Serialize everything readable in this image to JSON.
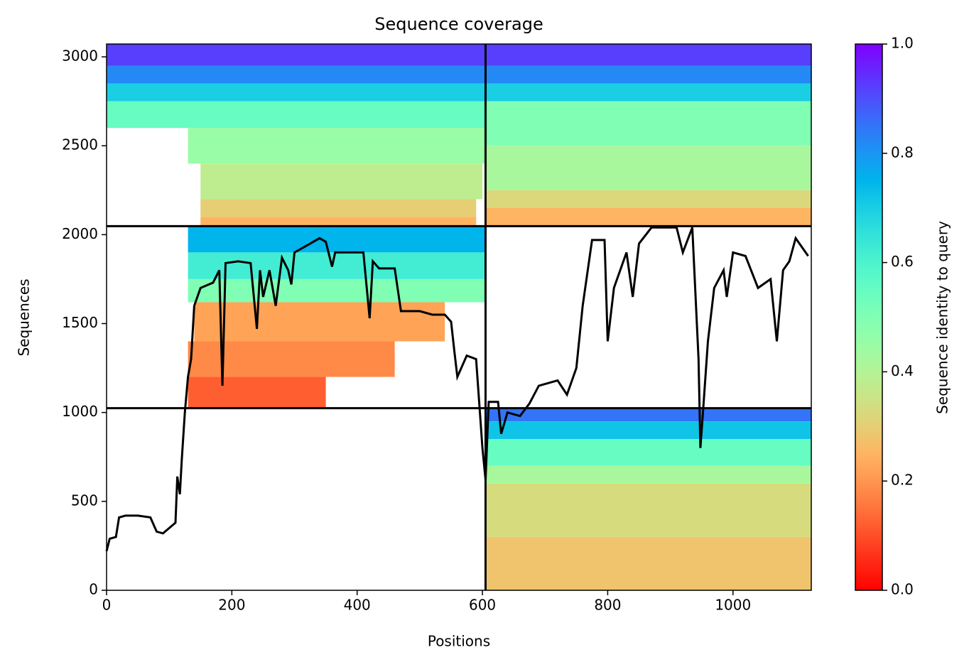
{
  "chart_data": {
    "type": "coverage",
    "title": "Sequence coverage",
    "xlabel": "Positions",
    "ylabel": "Sequences",
    "colorbar_label": "Sequence identity to query",
    "colormap": "rainbow_r",
    "xlim": [
      0,
      1125
    ],
    "ylim": [
      0,
      3072
    ],
    "xticks": [
      0,
      200,
      400,
      600,
      800,
      1000
    ],
    "yticks": [
      0,
      500,
      1000,
      1500,
      2000,
      2500,
      3000
    ],
    "clim": [
      0,
      1
    ],
    "cticks": [
      {
        "value": 0,
        "label": "0.0"
      },
      0.2,
      0.4,
      0.6,
      0.8,
      {
        "value": 1,
        "label": "1.0"
      }
    ],
    "dividers": {
      "x": [
        605
      ],
      "y": [
        1024,
        2048
      ]
    },
    "blocks": [
      {
        "x0": 0,
        "x1": 605,
        "y0": 2950,
        "y1": 3072,
        "identity": 0.92
      },
      {
        "x0": 0,
        "x1": 605,
        "y0": 2850,
        "y1": 2950,
        "identity": 0.82
      },
      {
        "x0": 0,
        "x1": 605,
        "y0": 2750,
        "y1": 2850,
        "identity": 0.7
      },
      {
        "x0": 0,
        "x1": 605,
        "y0": 2600,
        "y1": 2750,
        "identity": 0.55
      },
      {
        "x0": 130,
        "x1": 605,
        "y0": 2400,
        "y1": 2600,
        "identity": 0.45
      },
      {
        "x0": 150,
        "x1": 600,
        "y0": 2200,
        "y1": 2400,
        "identity": 0.38
      },
      {
        "x0": 150,
        "x1": 590,
        "y0": 2100,
        "y1": 2200,
        "identity": 0.3
      },
      {
        "x0": 150,
        "x1": 590,
        "y0": 2048,
        "y1": 2100,
        "identity": 0.25
      },
      {
        "x0": 605,
        "x1": 1125,
        "y0": 2950,
        "y1": 3072,
        "identity": 0.92
      },
      {
        "x0": 605,
        "x1": 1125,
        "y0": 2850,
        "y1": 2950,
        "identity": 0.82
      },
      {
        "x0": 605,
        "x1": 1125,
        "y0": 2750,
        "y1": 2850,
        "identity": 0.7
      },
      {
        "x0": 605,
        "x1": 1125,
        "y0": 2500,
        "y1": 2750,
        "identity": 0.5
      },
      {
        "x0": 605,
        "x1": 1125,
        "y0": 2250,
        "y1": 2500,
        "identity": 0.42
      },
      {
        "x0": 605,
        "x1": 1125,
        "y0": 2150,
        "y1": 2250,
        "identity": 0.32
      },
      {
        "x0": 605,
        "x1": 1125,
        "y0": 2048,
        "y1": 2150,
        "identity": 0.25
      },
      {
        "x0": 130,
        "x1": 605,
        "y0": 1900,
        "y1": 2048,
        "identity": 0.75
      },
      {
        "x0": 130,
        "x1": 605,
        "y0": 1750,
        "y1": 1900,
        "identity": 0.62
      },
      {
        "x0": 130,
        "x1": 605,
        "y0": 1620,
        "y1": 1750,
        "identity": 0.5
      },
      {
        "x0": 140,
        "x1": 540,
        "y0": 1400,
        "y1": 1620,
        "identity": 0.22
      },
      {
        "x0": 130,
        "x1": 460,
        "y0": 1200,
        "y1": 1400,
        "identity": 0.18
      },
      {
        "x0": 130,
        "x1": 350,
        "y0": 1024,
        "y1": 1200,
        "identity": 0.12
      },
      {
        "x0": 605,
        "x1": 1125,
        "y0": 950,
        "y1": 1024,
        "identity": 0.85
      },
      {
        "x0": 605,
        "x1": 1125,
        "y0": 850,
        "y1": 950,
        "identity": 0.72
      },
      {
        "x0": 605,
        "x1": 1125,
        "y0": 700,
        "y1": 850,
        "identity": 0.55
      },
      {
        "x0": 605,
        "x1": 1125,
        "y0": 600,
        "y1": 700,
        "identity": 0.42
      },
      {
        "x0": 605,
        "x1": 1125,
        "y0": 300,
        "y1": 600,
        "identity": 0.33
      },
      {
        "x0": 605,
        "x1": 1125,
        "y0": 0,
        "y1": 300,
        "identity": 0.28
      }
    ],
    "coverage": {
      "color": "#000000",
      "x": [
        0,
        5,
        15,
        20,
        30,
        50,
        70,
        80,
        90,
        100,
        110,
        113,
        117,
        120,
        125,
        130,
        135,
        140,
        150,
        170,
        180,
        185,
        190,
        210,
        230,
        240,
        245,
        250,
        260,
        270,
        280,
        290,
        295,
        300,
        320,
        340,
        350,
        360,
        365,
        410,
        420,
        425,
        435,
        460,
        470,
        500,
        520,
        540,
        550,
        555,
        560,
        575,
        590,
        600,
        605,
        610,
        625,
        630,
        640,
        660,
        675,
        690,
        720,
        735,
        750,
        760,
        775,
        795,
        800,
        810,
        830,
        840,
        850,
        870,
        910,
        920,
        935,
        945,
        948,
        952,
        960,
        970,
        985,
        990,
        1000,
        1020,
        1040,
        1060,
        1070,
        1080,
        1090,
        1100,
        1120
      ],
      "y": [
        220,
        290,
        300,
        410,
        420,
        420,
        410,
        330,
        320,
        350,
        380,
        640,
        540,
        730,
        1000,
        1200,
        1300,
        1600,
        1700,
        1730,
        1800,
        1150,
        1840,
        1850,
        1840,
        1470,
        1800,
        1650,
        1800,
        1600,
        1870,
        1800,
        1720,
        1900,
        1940,
        1980,
        1960,
        1820,
        1900,
        1900,
        1530,
        1850,
        1810,
        1810,
        1570,
        1570,
        1550,
        1550,
        1510,
        1350,
        1200,
        1320,
        1300,
        800,
        620,
        1060,
        1060,
        880,
        1000,
        980,
        1050,
        1150,
        1180,
        1100,
        1250,
        1600,
        1970,
        1970,
        1400,
        1700,
        1900,
        1650,
        1950,
        2040,
        2040,
        1900,
        2040,
        1300,
        800,
        1000,
        1400,
        1700,
        1800,
        1650,
        1900,
        1880,
        1700,
        1750,
        1400,
        1800,
        1850,
        1980,
        1880
      ]
    }
  }
}
